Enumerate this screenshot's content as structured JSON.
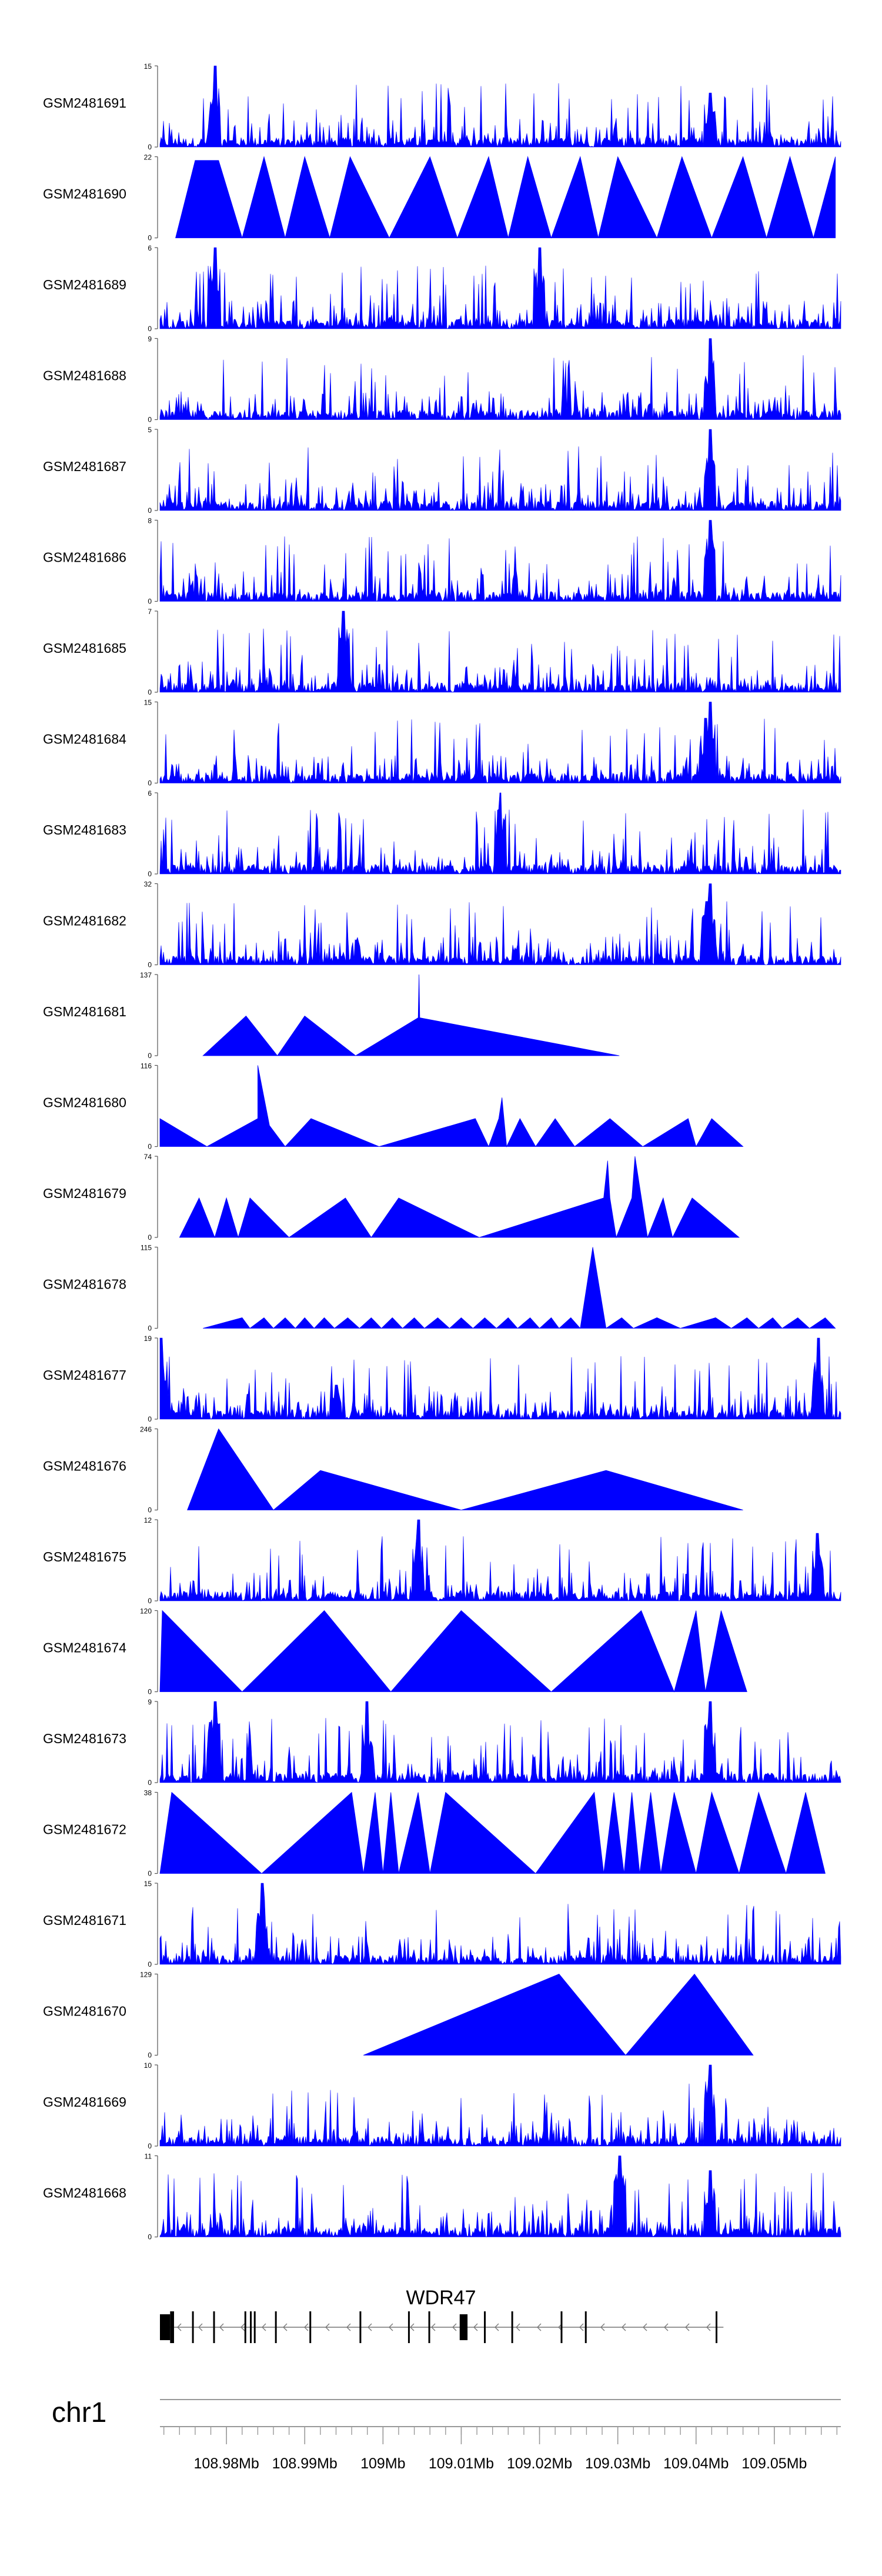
{
  "chart_data": {
    "type": "area",
    "chromosome": "chr1",
    "xlim": [
      108.9715,
      109.0585
    ],
    "x_tick_labels": [
      "108.98Mb",
      "108.99Mb",
      "109Mb",
      "109.01Mb",
      "109.02Mb",
      "109.03Mb",
      "109.04Mb",
      "109.05Mb"
    ],
    "x_tick_values": [
      108.98,
      108.99,
      109.0,
      109.01,
      109.02,
      109.03,
      109.04,
      109.05
    ],
    "gene": {
      "name": "WDR47",
      "start": 108.9715,
      "end": 109.0435,
      "strand": "-",
      "exons": [
        [
          108.9715,
          108.9728
        ],
        [
          108.9728,
          108.9733
        ],
        [
          108.9756,
          108.9758
        ],
        [
          108.9783,
          108.9785
        ],
        [
          108.9823,
          108.9825
        ],
        [
          108.983,
          108.9832
        ],
        [
          108.9835,
          108.9837
        ],
        [
          108.9862,
          108.9864
        ],
        [
          108.9906,
          108.9908
        ],
        [
          108.997,
          108.9972
        ],
        [
          109.0032,
          109.0034
        ],
        [
          109.0058,
          109.006
        ],
        [
          109.0098,
          109.0108
        ],
        [
          109.0129,
          109.0131
        ],
        [
          109.0164,
          109.0166
        ],
        [
          109.0227,
          109.0229
        ],
        [
          109.0258,
          109.026
        ],
        [
          109.0425,
          109.0427
        ]
      ]
    },
    "series": [
      {
        "name": "GSM2481691",
        "ylim": [
          0,
          15
        ],
        "color": "#0000ff",
        "style": "dense",
        "peaks": [
          [
            108.9785,
            15
          ],
          [
            109.0418,
            10
          ]
        ]
      },
      {
        "name": "GSM2481690",
        "ylim": [
          0,
          22
        ],
        "color": "#0000ff",
        "style": "sparse",
        "points": [
          [
            108.9735,
            0
          ],
          [
            108.976,
            21
          ],
          [
            108.979,
            21
          ],
          [
            108.982,
            0
          ],
          [
            108.9848,
            22
          ],
          [
            108.9875,
            0
          ],
          [
            108.99,
            22
          ],
          [
            108.9932,
            0
          ],
          [
            108.9958,
            22
          ],
          [
            109.0008,
            0
          ],
          [
            109.006,
            22
          ],
          [
            109.0095,
            0
          ],
          [
            109.0135,
            22
          ],
          [
            109.016,
            0
          ],
          [
            109.0185,
            22
          ],
          [
            109.0215,
            0
          ],
          [
            109.0252,
            22
          ],
          [
            109.0275,
            0
          ],
          [
            109.03,
            22
          ],
          [
            109.035,
            0
          ],
          [
            109.0382,
            22
          ],
          [
            109.042,
            0
          ],
          [
            109.046,
            22
          ],
          [
            109.049,
            0
          ],
          [
            109.052,
            22
          ],
          [
            109.055,
            0
          ],
          [
            109.0578,
            22
          ]
        ]
      },
      {
        "name": "GSM2481689",
        "ylim": [
          0,
          6
        ],
        "color": "#0000ff",
        "style": "dense",
        "peaks": [
          [
            108.9785,
            6
          ],
          [
            109.02,
            6
          ]
        ]
      },
      {
        "name": "GSM2481688",
        "ylim": [
          0,
          9
        ],
        "color": "#0000ff",
        "style": "dense",
        "peaks": [
          [
            109.0418,
            9
          ]
        ]
      },
      {
        "name": "GSM2481687",
        "ylim": [
          0,
          5
        ],
        "color": "#0000ff",
        "style": "dense",
        "peaks": [
          [
            109.0418,
            5
          ]
        ]
      },
      {
        "name": "GSM2481686",
        "ylim": [
          0,
          8
        ],
        "color": "#0000ff",
        "style": "dense",
        "peaks": [
          [
            109.0418,
            8
          ]
        ]
      },
      {
        "name": "GSM2481685",
        "ylim": [
          0,
          7
        ],
        "color": "#0000ff",
        "style": "dense",
        "peaks": [
          [
            108.995,
            7
          ]
        ]
      },
      {
        "name": "GSM2481684",
        "ylim": [
          0,
          15
        ],
        "color": "#0000ff",
        "style": "dense",
        "peaks": [
          [
            109.0418,
            15
          ],
          [
            109.0412,
            12
          ]
        ]
      },
      {
        "name": "GSM2481683",
        "ylim": [
          0,
          6
        ],
        "color": "#0000ff",
        "style": "dense",
        "peaks": [
          [
            109.015,
            6
          ]
        ]
      },
      {
        "name": "GSM2481682",
        "ylim": [
          0,
          32
        ],
        "color": "#0000ff",
        "style": "dense",
        "peaks": [
          [
            109.0418,
            32
          ],
          [
            109.0413,
            25
          ]
        ]
      },
      {
        "name": "GSM2481681",
        "ylim": [
          0,
          137
        ],
        "color": "#0000ff",
        "style": "sparse",
        "points": [
          [
            108.977,
            0
          ],
          [
            108.9825,
            67
          ],
          [
            108.9865,
            0
          ],
          [
            108.99,
            67
          ],
          [
            108.9965,
            0
          ],
          [
            109.0045,
            64
          ],
          [
            109.0046,
            137
          ],
          [
            109.0047,
            64
          ],
          [
            109.0302,
            0
          ]
        ]
      },
      {
        "name": "GSM2481680",
        "ylim": [
          0,
          116
        ],
        "color": "#0000ff",
        "style": "sparse",
        "points": [
          [
            108.9715,
            40
          ],
          [
            108.9775,
            0
          ],
          [
            108.984,
            40
          ],
          [
            108.984,
            116
          ],
          [
            108.9855,
            30
          ],
          [
            108.9875,
            0
          ],
          [
            108.9908,
            40
          ],
          [
            108.9995,
            0
          ],
          [
            109.0118,
            40
          ],
          [
            109.0135,
            0
          ],
          [
            109.0148,
            40
          ],
          [
            109.0152,
            70
          ],
          [
            109.0158,
            0
          ],
          [
            109.0175,
            40
          ],
          [
            109.0195,
            0
          ],
          [
            109.022,
            40
          ],
          [
            109.0245,
            0
          ],
          [
            109.029,
            40
          ],
          [
            109.0332,
            0
          ],
          [
            109.039,
            40
          ],
          [
            109.04,
            0
          ],
          [
            109.042,
            40
          ],
          [
            109.046,
            0
          ]
        ]
      },
      {
        "name": "GSM2481679",
        "ylim": [
          0,
          74
        ],
        "color": "#0000ff",
        "style": "sparse",
        "points": [
          [
            108.974,
            0
          ],
          [
            108.9765,
            36
          ],
          [
            108.9785,
            0
          ],
          [
            108.98,
            36
          ],
          [
            108.9815,
            0
          ],
          [
            108.983,
            36
          ],
          [
            108.988,
            0
          ],
          [
            108.9952,
            36
          ],
          [
            108.9985,
            0
          ],
          [
            109.002,
            36
          ],
          [
            109.0123,
            0
          ],
          [
            109.0282,
            36
          ],
          [
            109.0287,
            70
          ],
          [
            109.029,
            36
          ],
          [
            109.0298,
            0
          ],
          [
            109.0318,
            36
          ],
          [
            109.0322,
            74
          ],
          [
            109.0338,
            0
          ],
          [
            109.0358,
            36
          ],
          [
            109.037,
            0
          ],
          [
            109.0395,
            36
          ],
          [
            109.0455,
            0
          ]
        ]
      },
      {
        "name": "GSM2481678",
        "ylim": [
          0,
          115
        ],
        "color": "#0000ff",
        "style": "sparse",
        "points": [
          [
            108.977,
            0
          ],
          [
            108.982,
            15
          ],
          [
            108.983,
            0
          ],
          [
            108.9848,
            15
          ],
          [
            108.986,
            0
          ],
          [
            108.9875,
            15
          ],
          [
            108.9888,
            0
          ],
          [
            108.99,
            15
          ],
          [
            108.9912,
            0
          ],
          [
            108.9925,
            15
          ],
          [
            108.9938,
            0
          ],
          [
            108.9955,
            15
          ],
          [
            108.997,
            0
          ],
          [
            108.9985,
            15
          ],
          [
            108.9998,
            0
          ],
          [
            109.0012,
            15
          ],
          [
            109.0025,
            0
          ],
          [
            109.004,
            15
          ],
          [
            109.0053,
            0
          ],
          [
            109.007,
            15
          ],
          [
            109.0085,
            0
          ],
          [
            109.01,
            15
          ],
          [
            109.0115,
            0
          ],
          [
            109.013,
            15
          ],
          [
            109.0145,
            0
          ],
          [
            109.016,
            15
          ],
          [
            109.0172,
            0
          ],
          [
            109.0188,
            15
          ],
          [
            109.02,
            0
          ],
          [
            109.0215,
            15
          ],
          [
            109.0225,
            0
          ],
          [
            109.024,
            15
          ],
          [
            109.0252,
            0
          ],
          [
            109.0268,
            115
          ],
          [
            109.0285,
            0
          ],
          [
            109.0305,
            15
          ],
          [
            109.032,
            0
          ],
          [
            109.035,
            15
          ],
          [
            109.038,
            0
          ],
          [
            109.0425,
            15
          ],
          [
            109.0445,
            0
          ],
          [
            109.0465,
            15
          ],
          [
            109.048,
            0
          ],
          [
            109.0498,
            15
          ],
          [
            109.051,
            0
          ],
          [
            109.053,
            15
          ],
          [
            109.0545,
            0
          ],
          [
            109.0565,
            15
          ],
          [
            109.0578,
            0
          ]
        ]
      },
      {
        "name": "GSM2481677",
        "ylim": [
          0,
          19
        ],
        "color": "#0000ff",
        "style": "dense",
        "peaks": [
          [
            108.9717,
            19
          ],
          [
            108.994,
            8
          ],
          [
            109.0556,
            19
          ]
        ]
      },
      {
        "name": "GSM2481676",
        "ylim": [
          0,
          246
        ],
        "color": "#0000ff",
        "style": "sparse",
        "points": [
          [
            108.975,
            0
          ],
          [
            108.979,
            246
          ],
          [
            108.986,
            0
          ],
          [
            108.992,
            120
          ],
          [
            109.01,
            0
          ],
          [
            109.0285,
            120
          ],
          [
            109.046,
            0
          ]
        ]
      },
      {
        "name": "GSM2481675",
        "ylim": [
          0,
          12
        ],
        "color": "#0000ff",
        "style": "dense",
        "peaks": [
          [
            109.0045,
            12
          ],
          [
            109.0555,
            10
          ]
        ]
      },
      {
        "name": "GSM2481674",
        "ylim": [
          0,
          120
        ],
        "color": "#0000ff",
        "style": "sparse",
        "points": [
          [
            108.9715,
            0
          ],
          [
            108.9718,
            120
          ],
          [
            108.982,
            0
          ],
          [
            108.9925,
            120
          ],
          [
            109.001,
            0
          ],
          [
            109.01,
            120
          ],
          [
            109.0215,
            0
          ],
          [
            109.033,
            120
          ],
          [
            109.0372,
            0
          ],
          [
            109.04,
            120
          ],
          [
            109.0412,
            0
          ],
          [
            109.0432,
            120
          ],
          [
            109.0465,
            0
          ]
        ]
      },
      {
        "name": "GSM2481673",
        "ylim": [
          0,
          9
        ],
        "color": "#0000ff",
        "style": "dense",
        "peaks": [
          [
            108.9785,
            9
          ],
          [
            108.998,
            9
          ],
          [
            109.0418,
            9
          ]
        ]
      },
      {
        "name": "GSM2481672",
        "ylim": [
          0,
          38
        ],
        "color": "#0000ff",
        "style": "sparse",
        "points": [
          [
            108.9715,
            0
          ],
          [
            108.973,
            38
          ],
          [
            108.9845,
            0
          ],
          [
            108.996,
            38
          ],
          [
            108.9975,
            0
          ],
          [
            108.999,
            38
          ],
          [
            109.0,
            0
          ],
          [
            109.001,
            38
          ],
          [
            109.002,
            0
          ],
          [
            109.0045,
            38
          ],
          [
            109.006,
            0
          ],
          [
            109.008,
            38
          ],
          [
            109.0195,
            0
          ],
          [
            109.027,
            38
          ],
          [
            109.0282,
            0
          ],
          [
            109.0295,
            38
          ],
          [
            109.0308,
            0
          ],
          [
            109.0318,
            38
          ],
          [
            109.0328,
            0
          ],
          [
            109.0342,
            38
          ],
          [
            109.0355,
            0
          ],
          [
            109.0372,
            38
          ],
          [
            109.04,
            0
          ],
          [
            109.042,
            38
          ],
          [
            109.0455,
            0
          ],
          [
            109.048,
            38
          ],
          [
            109.0515,
            0
          ],
          [
            109.054,
            38
          ],
          [
            109.0565,
            0
          ]
        ]
      },
      {
        "name": "GSM2481671",
        "ylim": [
          0,
          15
        ],
        "color": "#0000ff",
        "style": "dense",
        "peaks": [
          [
            108.9845,
            15
          ]
        ]
      },
      {
        "name": "GSM2481670",
        "ylim": [
          0,
          129
        ],
        "color": "#0000ff",
        "style": "sparse",
        "points": [
          [
            108.9975,
            0
          ],
          [
            109.0225,
            129
          ],
          [
            109.031,
            0
          ],
          [
            109.0398,
            129
          ],
          [
            109.0473,
            0
          ]
        ]
      },
      {
        "name": "GSM2481669",
        "ylim": [
          0,
          10
        ],
        "color": "#0000ff",
        "style": "dense",
        "peaks": [
          [
            109.0418,
            10
          ]
        ]
      },
      {
        "name": "GSM2481668",
        "ylim": [
          0,
          11
        ],
        "color": "#0000ff",
        "style": "dense",
        "peaks": [
          [
            109.0302,
            11
          ],
          [
            109.0418,
            9
          ]
        ]
      }
    ]
  }
}
